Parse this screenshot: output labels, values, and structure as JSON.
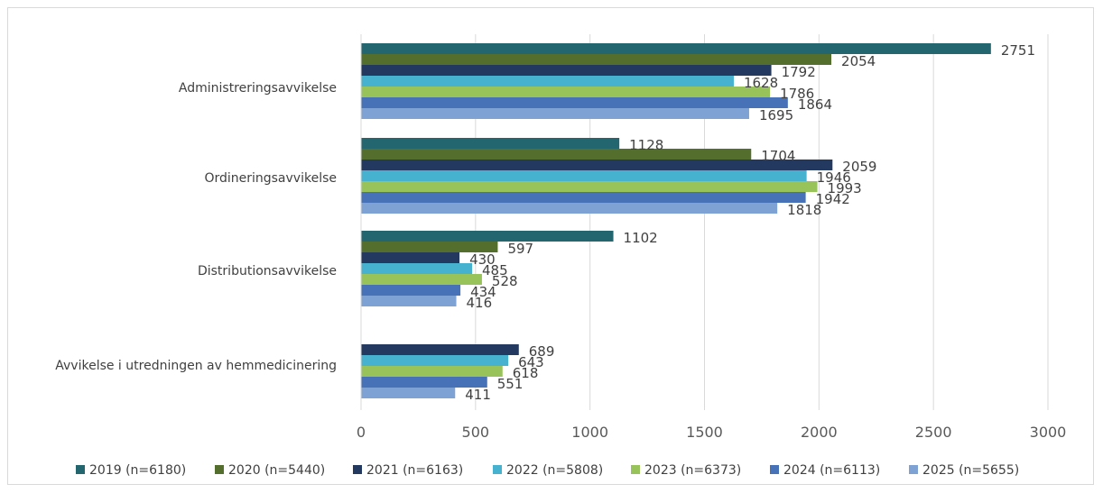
{
  "chart_data": {
    "type": "bar",
    "orientation": "horizontal",
    "categories": [
      "Administreringsavvikelse",
      "Ordineringsavvikelse",
      "Distributionsavvikelse",
      "Avvikelse i utredningen av hemmedicinering"
    ],
    "series": [
      {
        "name": "2019 (n=6180)",
        "color": "#23666f",
        "values": [
          2751,
          1128,
          1102,
          null
        ]
      },
      {
        "name": "2020 (n=5440)",
        "color": "#546f2d",
        "values": [
          2054,
          1704,
          597,
          null
        ]
      },
      {
        "name": "2021 (n=6163)",
        "color": "#24395f",
        "values": [
          1792,
          2059,
          430,
          689
        ]
      },
      {
        "name": "2022 (n=5808)",
        "color": "#46b2cf",
        "values": [
          1628,
          1946,
          485,
          643
        ]
      },
      {
        "name": "2023 (n=6373)",
        "color": "#98c35a",
        "values": [
          1786,
          1993,
          528,
          618
        ]
      },
      {
        "name": "2024 (n=6113)",
        "color": "#4872b8",
        "values": [
          1864,
          1942,
          434,
          551
        ]
      },
      {
        "name": "2025 (n=5655)",
        "color": "#7ea2d4",
        "values": [
          1695,
          1818,
          416,
          411
        ]
      }
    ],
    "xlim": [
      0,
      3000
    ],
    "xticks": [
      "0",
      "500",
      "1000",
      "1500",
      "2000",
      "2500",
      "3000"
    ],
    "grid": true,
    "legend": "bottom",
    "title": "",
    "xlabel": "",
    "ylabel": ""
  }
}
